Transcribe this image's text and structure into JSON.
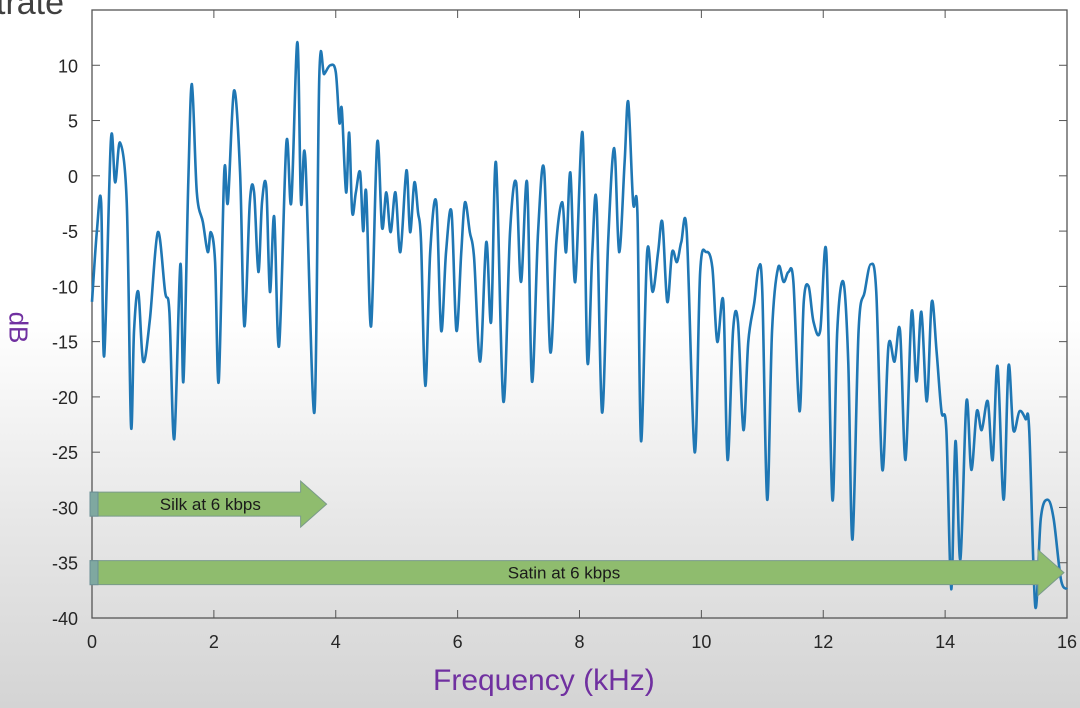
{
  "header_fragment": "trate",
  "chart_data": {
    "type": "line",
    "title": "",
    "xlabel": "Frequency (kHz)",
    "ylabel": "dB",
    "xlim": [
      0,
      16
    ],
    "ylim": [
      -40,
      15
    ],
    "xticks": [
      0,
      2,
      4,
      6,
      8,
      10,
      12,
      14,
      16
    ],
    "yticks": [
      -40,
      -35,
      -30,
      -25,
      -20,
      -15,
      -10,
      -5,
      0,
      5,
      10
    ],
    "grid": false,
    "line_color": "#1f77b4",
    "series": [
      {
        "name": "spectrum",
        "points": [
          [
            0,
            -11.4
          ],
          [
            0.08,
            -5
          ],
          [
            0.15,
            -2.4
          ],
          [
            0.2,
            -16.3
          ],
          [
            0.31,
            3.2
          ],
          [
            0.38,
            -0.6
          ],
          [
            0.46,
            3
          ],
          [
            0.57,
            -2.4
          ],
          [
            0.64,
            -22.6
          ],
          [
            0.69,
            -14
          ],
          [
            0.76,
            -10.5
          ],
          [
            0.84,
            -16.8
          ],
          [
            0.95,
            -13
          ],
          [
            1.08,
            -5.1
          ],
          [
            1.2,
            -10.5
          ],
          [
            1.27,
            -12.3
          ],
          [
            1.35,
            -23.8
          ],
          [
            1.45,
            -8
          ],
          [
            1.5,
            -18.6
          ],
          [
            1.58,
            -0.6
          ],
          [
            1.64,
            8.3
          ],
          [
            1.72,
            -1.5
          ],
          [
            1.82,
            -4.2
          ],
          [
            1.9,
            -6.9
          ],
          [
            1.95,
            -5.1
          ],
          [
            2.02,
            -7.8
          ],
          [
            2.08,
            -18.6
          ],
          [
            2.17,
            0.3
          ],
          [
            2.23,
            -2.4
          ],
          [
            2.33,
            7.7
          ],
          [
            2.43,
            0.3
          ],
          [
            2.5,
            -13.6
          ],
          [
            2.59,
            -2.4
          ],
          [
            2.66,
            -1.5
          ],
          [
            2.73,
            -8.7
          ],
          [
            2.79,
            -2.4
          ],
          [
            2.86,
            -1
          ],
          [
            2.92,
            -10.5
          ],
          [
            2.99,
            -3.7
          ],
          [
            3.07,
            -15.4
          ],
          [
            3.19,
            3
          ],
          [
            3.27,
            -2.4
          ],
          [
            3.37,
            12.1
          ],
          [
            3.43,
            -2.4
          ],
          [
            3.5,
            1.6
          ],
          [
            3.65,
            -21.4
          ],
          [
            3.73,
            9
          ],
          [
            3.81,
            9.2
          ],
          [
            3.91,
            10
          ],
          [
            4.0,
            9.4
          ],
          [
            4.06,
            4.8
          ],
          [
            4.1,
            6
          ],
          [
            4.17,
            -1.5
          ],
          [
            4.22,
            3.9
          ],
          [
            4.27,
            -3.3
          ],
          [
            4.33,
            -1.5
          ],
          [
            4.4,
            0.3
          ],
          [
            4.45,
            -5
          ],
          [
            4.5,
            -1.5
          ],
          [
            4.58,
            -13.6
          ],
          [
            4.68,
            3
          ],
          [
            4.76,
            -4.7
          ],
          [
            4.83,
            -1.5
          ],
          [
            4.9,
            -5.1
          ],
          [
            4.98,
            -1.5
          ],
          [
            5.06,
            -6.9
          ],
          [
            5.16,
            0.5
          ],
          [
            5.22,
            -5.1
          ],
          [
            5.29,
            -0.6
          ],
          [
            5.35,
            -3.3
          ],
          [
            5.4,
            -6
          ],
          [
            5.47,
            -19
          ],
          [
            5.55,
            -6.9
          ],
          [
            5.65,
            -2.4
          ],
          [
            5.73,
            -14
          ],
          [
            5.81,
            -6.9
          ],
          [
            5.9,
            -3.3
          ],
          [
            5.98,
            -14
          ],
          [
            6.06,
            -6.9
          ],
          [
            6.12,
            -2.4
          ],
          [
            6.2,
            -5.1
          ],
          [
            6.27,
            -7.4
          ],
          [
            6.37,
            -16.8
          ],
          [
            6.47,
            -6
          ],
          [
            6.55,
            -13.2
          ],
          [
            6.63,
            1.2
          ],
          [
            6.75,
            -20.4
          ],
          [
            6.86,
            -5.1
          ],
          [
            6.96,
            -0.6
          ],
          [
            7.04,
            -9.6
          ],
          [
            7.14,
            -0.6
          ],
          [
            7.22,
            -18.6
          ],
          [
            7.32,
            -5.1
          ],
          [
            7.42,
            0.5
          ],
          [
            7.52,
            -15.9
          ],
          [
            7.62,
            -6
          ],
          [
            7.72,
            -2.4
          ],
          [
            7.78,
            -6.9
          ],
          [
            7.85,
            0.3
          ],
          [
            7.93,
            -9.6
          ],
          [
            8.05,
            3.9
          ],
          [
            8.13,
            -16.8
          ],
          [
            8.21,
            -6.9
          ],
          [
            8.28,
            -2.4
          ],
          [
            8.37,
            -21.4
          ],
          [
            8.47,
            -6
          ],
          [
            8.57,
            2.5
          ],
          [
            8.65,
            -6.9
          ],
          [
            8.74,
            1.2
          ],
          [
            8.8,
            6.7
          ],
          [
            8.88,
            -2.4
          ],
          [
            8.95,
            -3.3
          ],
          [
            9.01,
            -24
          ],
          [
            9.11,
            -6.9
          ],
          [
            9.2,
            -10.5
          ],
          [
            9.29,
            -6.9
          ],
          [
            9.36,
            -4.2
          ],
          [
            9.44,
            -11.4
          ],
          [
            9.52,
            -6.9
          ],
          [
            9.6,
            -7.8
          ],
          [
            9.67,
            -6
          ],
          [
            9.76,
            -5.1
          ],
          [
            9.89,
            -25
          ],
          [
            9.98,
            -8.7
          ],
          [
            10.08,
            -6.9
          ],
          [
            10.18,
            -8.3
          ],
          [
            10.26,
            -15
          ],
          [
            10.36,
            -11.4
          ],
          [
            10.43,
            -25.7
          ],
          [
            10.52,
            -14
          ],
          [
            10.6,
            -13.2
          ],
          [
            10.69,
            -23
          ],
          [
            10.77,
            -15
          ],
          [
            10.87,
            -11.4
          ],
          [
            10.94,
            -8.3
          ],
          [
            11.0,
            -10.5
          ],
          [
            11.08,
            -29.3
          ],
          [
            11.16,
            -14
          ],
          [
            11.26,
            -8.3
          ],
          [
            11.35,
            -9.6
          ],
          [
            11.43,
            -8.7
          ],
          [
            11.51,
            -9.6
          ],
          [
            11.61,
            -21.3
          ],
          [
            11.68,
            -11.4
          ],
          [
            11.76,
            -10
          ],
          [
            11.84,
            -13.2
          ],
          [
            11.95,
            -14
          ],
          [
            12.05,
            -6.9
          ],
          [
            12.15,
            -29.3
          ],
          [
            12.23,
            -14
          ],
          [
            12.33,
            -9.6
          ],
          [
            12.41,
            -16.8
          ],
          [
            12.48,
            -32.9
          ],
          [
            12.58,
            -14
          ],
          [
            12.68,
            -10.5
          ],
          [
            12.78,
            -8
          ],
          [
            12.87,
            -10.5
          ],
          [
            12.97,
            -26.6
          ],
          [
            13.07,
            -15.4
          ],
          [
            13.17,
            -16.8
          ],
          [
            13.26,
            -14
          ],
          [
            13.35,
            -25.7
          ],
          [
            13.45,
            -12.3
          ],
          [
            13.53,
            -18.6
          ],
          [
            13.61,
            -12.3
          ],
          [
            13.7,
            -20.4
          ],
          [
            13.78,
            -11.4
          ],
          [
            13.86,
            -15.9
          ],
          [
            13.94,
            -21.3
          ],
          [
            14.02,
            -23
          ],
          [
            14.1,
            -37.4
          ],
          [
            14.17,
            -24
          ],
          [
            14.25,
            -34.7
          ],
          [
            14.35,
            -20.4
          ],
          [
            14.43,
            -26.6
          ],
          [
            14.52,
            -21.3
          ],
          [
            14.6,
            -23
          ],
          [
            14.7,
            -20.4
          ],
          [
            14.78,
            -25.7
          ],
          [
            14.86,
            -17.2
          ],
          [
            14.96,
            -29.3
          ],
          [
            15.04,
            -17.2
          ],
          [
            15.12,
            -23
          ],
          [
            15.22,
            -21.3
          ],
          [
            15.32,
            -22
          ],
          [
            15.38,
            -23
          ],
          [
            15.48,
            -39
          ],
          [
            15.57,
            -31
          ],
          [
            15.68,
            -29.3
          ],
          [
            15.78,
            -31
          ],
          [
            15.9,
            -36.5
          ],
          [
            16,
            -37.4
          ]
        ]
      }
    ],
    "annotations": [
      {
        "label": "Silk at 6 kbps",
        "type": "arrow",
        "x_start": 0,
        "x_end": 3.85,
        "y_center": -29.7,
        "color": "#8fbc6e"
      },
      {
        "label": "Satin at 6 kbps",
        "type": "arrow",
        "x_start": 0,
        "x_end": 15.95,
        "y_center": -35.9,
        "color": "#8fbc6e"
      }
    ]
  }
}
